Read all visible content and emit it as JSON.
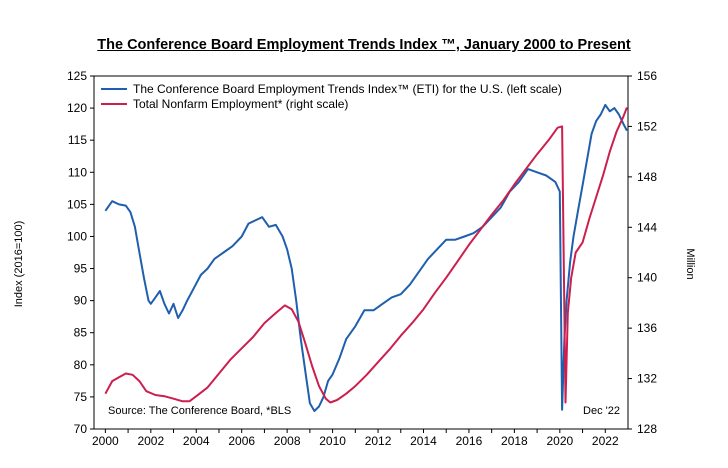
{
  "chart_data": {
    "type": "line",
    "title": "The Conference Board Employment Trends Index ™, January 2000 to Present",
    "ylabel_left": "Index (2016=100)",
    "ylabel_right": "Million",
    "xlim": [
      1999.5,
      2023.0
    ],
    "ylim_left": [
      70,
      125
    ],
    "ylim_right": [
      128,
      156
    ],
    "x_ticks": [
      "2000",
      "2002",
      "2004",
      "2006",
      "2008",
      "2010",
      "2012",
      "2014",
      "2016",
      "2018",
      "2020",
      "2022"
    ],
    "y_ticks_left": [
      70,
      75,
      80,
      85,
      90,
      95,
      100,
      105,
      110,
      115,
      120,
      125
    ],
    "y_ticks_right": [
      128,
      132,
      136,
      140,
      144,
      148,
      152,
      156
    ],
    "legend_placement": "top-left",
    "source_note": "Source: The Conference Board, *BLS",
    "date_note": "Dec '22",
    "series": [
      {
        "name": "The Conference Board Employment Trends Index™ (ETI) for the U.S. (left scale)",
        "axis": "left",
        "color": "#1f5fad",
        "x": [
          2000.0,
          2000.3,
          2000.6,
          2000.9,
          2001.1,
          2001.3,
          2001.5,
          2001.7,
          2001.9,
          2002.0,
          2002.2,
          2002.4,
          2002.6,
          2002.8,
          2003.0,
          2003.2,
          2003.4,
          2003.6,
          2003.9,
          2004.2,
          2004.5,
          2004.8,
          2005.2,
          2005.6,
          2006.0,
          2006.3,
          2006.6,
          2006.9,
          2007.2,
          2007.5,
          2007.8,
          2008.0,
          2008.2,
          2008.4,
          2008.6,
          2008.8,
          2009.0,
          2009.2,
          2009.4,
          2009.6,
          2009.8,
          2010.0,
          2010.3,
          2010.6,
          2011.0,
          2011.4,
          2011.8,
          2012.2,
          2012.6,
          2013.0,
          2013.4,
          2013.8,
          2014.2,
          2014.6,
          2015.0,
          2015.4,
          2015.8,
          2016.2,
          2016.6,
          2017.0,
          2017.4,
          2017.8,
          2018.2,
          2018.6,
          2019.0,
          2019.4,
          2019.8,
          2020.0,
          2020.1,
          2020.2,
          2020.3,
          2020.45,
          2020.6,
          2020.8,
          2021.0,
          2021.2,
          2021.4,
          2021.6,
          2021.8,
          2022.0,
          2022.2,
          2022.4,
          2022.6,
          2022.8,
          2022.95
        ],
        "values": [
          104.0,
          105.5,
          105.0,
          104.8,
          103.8,
          101.5,
          97.5,
          93.5,
          90.0,
          89.5,
          90.5,
          91.5,
          89.5,
          88.0,
          89.5,
          87.3,
          88.5,
          90.0,
          92.0,
          94.0,
          95.0,
          96.5,
          97.5,
          98.5,
          100.0,
          102.0,
          102.5,
          103.0,
          101.5,
          101.8,
          100.0,
          98.0,
          95.0,
          90.0,
          84.0,
          79.0,
          74.0,
          72.8,
          73.5,
          75.0,
          77.5,
          78.5,
          81.0,
          84.0,
          86.0,
          88.5,
          88.5,
          89.5,
          90.5,
          91.0,
          92.5,
          94.5,
          96.5,
          98.0,
          99.5,
          99.5,
          100.0,
          100.5,
          101.5,
          103.0,
          104.5,
          107.0,
          108.5,
          110.5,
          110.0,
          109.5,
          108.5,
          107.0,
          73.0,
          84.0,
          90.0,
          96.0,
          100.0,
          104.0,
          108.0,
          112.0,
          116.0,
          118.0,
          119.0,
          120.5,
          119.5,
          120.0,
          119.0,
          117.5,
          116.5
        ]
      },
      {
        "name": "Total Nonfarm Employment* (right scale)",
        "axis": "right",
        "color": "#cc1f4e",
        "x": [
          2000.0,
          2000.3,
          2000.6,
          2000.9,
          2001.2,
          2001.5,
          2001.8,
          2002.2,
          2002.6,
          2003.0,
          2003.4,
          2003.7,
          2004.0,
          2004.5,
          2005.0,
          2005.5,
          2006.0,
          2006.5,
          2007.0,
          2007.5,
          2007.9,
          2008.2,
          2008.5,
          2008.8,
          2009.1,
          2009.4,
          2009.7,
          2009.9,
          2010.2,
          2010.6,
          2011.0,
          2011.5,
          2012.0,
          2012.5,
          2013.0,
          2013.5,
          2014.0,
          2014.5,
          2015.0,
          2015.5,
          2016.0,
          2016.5,
          2017.0,
          2017.5,
          2018.0,
          2018.5,
          2019.0,
          2019.5,
          2019.9,
          2020.1,
          2020.25,
          2020.35,
          2020.5,
          2020.7,
          2021.0,
          2021.3,
          2021.6,
          2021.9,
          2022.2,
          2022.5,
          2022.8,
          2022.95
        ],
        "values": [
          130.8,
          131.8,
          132.1,
          132.4,
          132.3,
          131.8,
          131.0,
          130.7,
          130.6,
          130.4,
          130.2,
          130.2,
          130.6,
          131.3,
          132.4,
          133.5,
          134.4,
          135.3,
          136.4,
          137.2,
          137.8,
          137.5,
          136.5,
          134.8,
          133.0,
          131.4,
          130.4,
          130.1,
          130.3,
          130.8,
          131.4,
          132.3,
          133.3,
          134.3,
          135.4,
          136.4,
          137.5,
          138.8,
          140.0,
          141.3,
          142.6,
          143.8,
          145.0,
          146.1,
          147.4,
          148.6,
          149.8,
          150.9,
          151.9,
          152.0,
          130.1,
          137.2,
          140.0,
          142.0,
          142.8,
          144.7,
          146.4,
          148.1,
          150.0,
          151.6,
          152.8,
          153.5
        ]
      }
    ]
  }
}
